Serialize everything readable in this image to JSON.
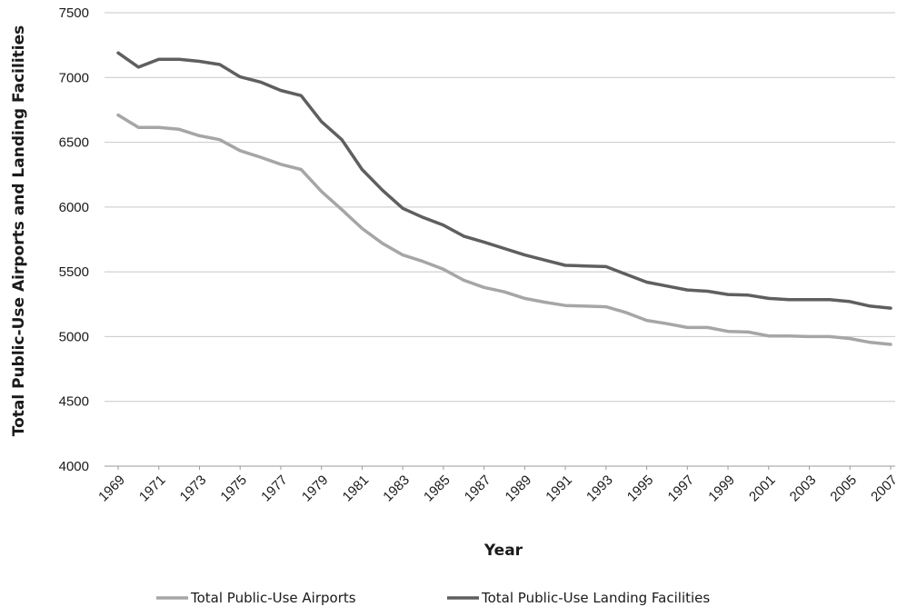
{
  "chart_data": {
    "type": "line",
    "title": "",
    "xlabel": "Year",
    "ylabel": "Total Public-Use Airports and Landing Facilities",
    "ylim": [
      4000,
      7500
    ],
    "yticks": [
      4000,
      4500,
      5000,
      5500,
      6000,
      6500,
      7000,
      7500
    ],
    "xlim": [
      1969,
      2007
    ],
    "xtick_labels": [
      "1969",
      "1971",
      "1973",
      "1975",
      "1977",
      "1979",
      "1981",
      "1983",
      "1985",
      "1987",
      "1989",
      "1991",
      "1993",
      "1995",
      "1997",
      "1999",
      "2001",
      "2003",
      "2005",
      "2007"
    ],
    "grid": true,
    "legend_position": "bottom",
    "x": [
      1969,
      1970,
      1971,
      1972,
      1973,
      1974,
      1975,
      1976,
      1977,
      1978,
      1979,
      1980,
      1981,
      1982,
      1983,
      1984,
      1985,
      1986,
      1987,
      1988,
      1989,
      1990,
      1991,
      1992,
      1993,
      1994,
      1995,
      1996,
      1997,
      1998,
      1999,
      2000,
      2001,
      2002,
      2003,
      2004,
      2005,
      2006,
      2007
    ],
    "series": [
      {
        "name": "Total Public-Use Airports",
        "color": "#a6a6a6",
        "values": [
          6710,
          6615,
          6615,
          6600,
          6550,
          6520,
          6435,
          6385,
          6330,
          6290,
          6120,
          5980,
          5835,
          5720,
          5630,
          5580,
          5520,
          5435,
          5380,
          5345,
          5295,
          5265,
          5240,
          5235,
          5230,
          5185,
          5125,
          5100,
          5070,
          5070,
          5040,
          5035,
          5005,
          5005,
          5000,
          5000,
          4985,
          4955,
          4940
        ]
      },
      {
        "name": "Total Public-Use Landing Facilities",
        "color": "#5f5f5f",
        "values": [
          7190,
          7080,
          7140,
          7140,
          7125,
          7100,
          7005,
          6965,
          6900,
          6860,
          6660,
          6520,
          6290,
          6130,
          5990,
          5920,
          5860,
          5775,
          5730,
          5680,
          5630,
          5590,
          5550,
          5545,
          5540,
          5480,
          5420,
          5390,
          5360,
          5350,
          5325,
          5320,
          5295,
          5285,
          5285,
          5285,
          5270,
          5235,
          5220
        ]
      }
    ]
  }
}
